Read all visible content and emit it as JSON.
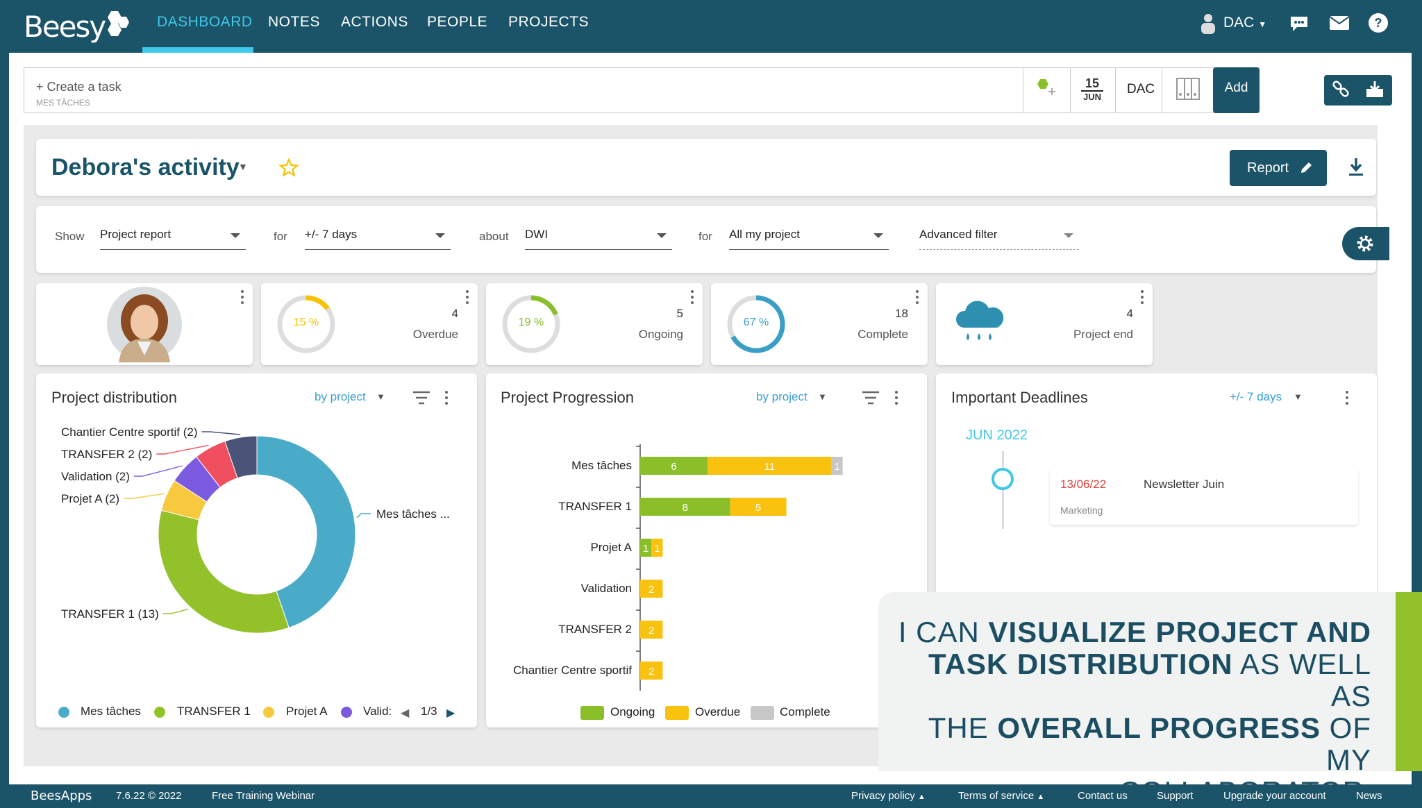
{
  "brand": {
    "logo_text": "Beesy"
  },
  "nav": {
    "items": [
      "DASHBOARD",
      "NOTES",
      "ACTIONS",
      "PEOPLE",
      "PROJECTS"
    ],
    "active": "DASHBOARD",
    "user": "DAC"
  },
  "taskbar": {
    "placeholder": "+ Create a task",
    "sub": "MES TÂCHES",
    "date_day": "15",
    "date_month": "JUN",
    "assignee": "DAC",
    "add_label": "Add"
  },
  "activity": {
    "title": "Debora's activity",
    "report_label": "Report"
  },
  "filters": {
    "show_label": "Show",
    "show_value": "Project report",
    "for_label": "for",
    "for_value": "+/- 7 days",
    "about_label": "about",
    "about_value": "DWI",
    "for2_label": "for",
    "for2_value": "All my project",
    "advanced": "Advanced filter"
  },
  "stats": [
    {
      "pct": "15 %",
      "pct_value": 15,
      "count": "4",
      "label": "Overdue",
      "color": "#f6c200"
    },
    {
      "pct": "19 %",
      "pct_value": 19,
      "count": "5",
      "label": "Ongoing",
      "color": "#8bbf2a"
    },
    {
      "pct": "67 %",
      "pct_value": 67,
      "count": "18",
      "label": "Complete",
      "color": "#3a9fc4"
    },
    {
      "count": "4",
      "label": "Project end"
    }
  ],
  "distribution": {
    "title": "Project distribution",
    "by": "by project",
    "page": "1/3",
    "legend": [
      "Mes tâches",
      "TRANSFER 1",
      "Projet A",
      "Valid:"
    ],
    "chart_data": {
      "type": "pie",
      "slices": [
        {
          "label": "Mes tâches ...",
          "value": 17,
          "color": "#4aabc9"
        },
        {
          "label": "TRANSFER 1 (13)",
          "value": 13,
          "color": "#93c12a"
        },
        {
          "label": "Projet A (2)",
          "value": 2,
          "color": "#f6c93e"
        },
        {
          "label": "Validation (2)",
          "value": 2,
          "color": "#7c5ae0"
        },
        {
          "label": "TRANSFER 2 (2)",
          "value": 2,
          "color": "#ef4f5f"
        },
        {
          "label": "Chantier Centre sportif (2)",
          "value": 2,
          "color": "#4a5378"
        }
      ]
    }
  },
  "progression": {
    "title": "Project Progression",
    "by": "by project",
    "chart_data": {
      "type": "bar",
      "categories": [
        "Mes tâches",
        "TRANSFER 1",
        "Projet A",
        "Validation",
        "TRANSFER 2",
        "Chantier Centre sportif"
      ],
      "series": [
        {
          "name": "Ongoing",
          "values": [
            6,
            8,
            1,
            0,
            0,
            0
          ],
          "color": "#8bbf2a"
        },
        {
          "name": "Overdue",
          "values": [
            11,
            5,
            1,
            2,
            2,
            2
          ],
          "color": "#f9c20f"
        },
        {
          "name": "Complete",
          "values": [
            1,
            0,
            0,
            0,
            0,
            0
          ],
          "color": "#c7c7c7"
        }
      ]
    }
  },
  "deadlines": {
    "title": "Important Deadlines",
    "range": "+/- 7 days",
    "month": "JUN 2022",
    "item_date": "13/06/22",
    "item_title": "Newsletter Juin",
    "item_tag": "Marketing"
  },
  "overlay": {
    "l1a": "I CAN ",
    "l1b": "VISUALIZE PROJECT AND",
    "l2a": "TASK DISTRIBUTION",
    "l2b": " AS WELL AS",
    "l3a": "THE ",
    "l3b": "OVERALL PROGRESS",
    "l3c": " OF MY",
    "l4": "COLLABORATOR"
  },
  "footer": {
    "logo": "BeesApps",
    "version": "7.6.22 © 2022",
    "webinar": "Free Training Webinar",
    "links": [
      "Privacy policy",
      "Terms of service",
      "Contact us",
      "Support",
      "Upgrade your account",
      "News"
    ]
  }
}
